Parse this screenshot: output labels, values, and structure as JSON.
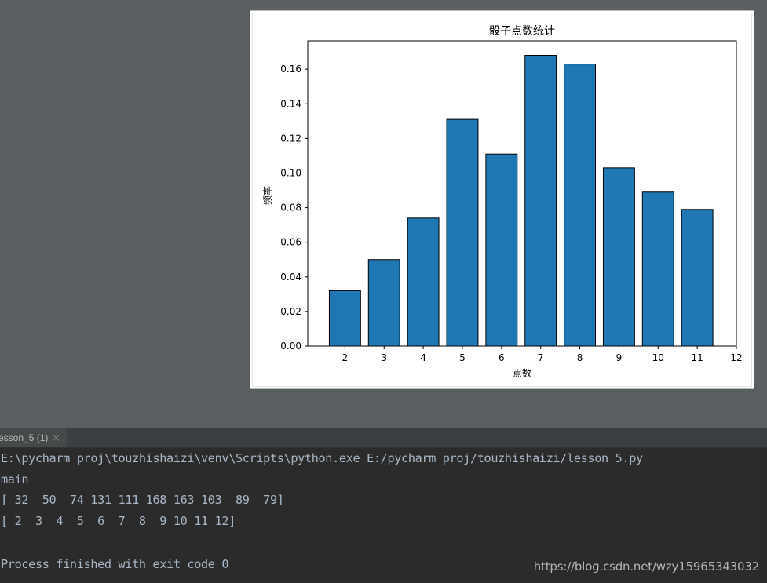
{
  "chart_window": {
    "chart_data": {
      "type": "bar",
      "title": "骰子点数统计",
      "xlabel": "点数",
      "ylabel": "频率",
      "categories": [
        2,
        3,
        4,
        5,
        6,
        7,
        8,
        9,
        10,
        11
      ],
      "values": [
        0.032,
        0.05,
        0.074,
        0.131,
        0.111,
        0.168,
        0.163,
        0.103,
        0.089,
        0.079
      ],
      "xlim": [
        1.05,
        12
      ],
      "ylim": [
        0,
        0.1764
      ],
      "xticks": [
        "2",
        "3",
        "4",
        "5",
        "6",
        "7",
        "8",
        "9",
        "10",
        "11",
        "12"
      ],
      "yticks": [
        "0.00",
        "0.02",
        "0.04",
        "0.06",
        "0.08",
        "0.10",
        "0.12",
        "0.14",
        "0.16"
      ],
      "bar_color": "#1f77b4",
      "edge_color": "#000000",
      "grid": false
    }
  },
  "run_panel": {
    "tab_label": "esson_5 (1)",
    "console_lines": [
      "E:\\pycharm_proj\\touzhishaizi\\venv\\Scripts\\python.exe E:/pycharm_proj/touzhishaizi/lesson_5.py",
      "main",
      "[ 32  50  74 131 111 168 163 103  89  79]",
      "[ 2  3  4  5  6  7  8  9 10 11 12]",
      "",
      "Process finished with exit code 0"
    ]
  },
  "watermark": "https://blog.csdn.net/wzy15965343032",
  "colors": {
    "desktop_bg": "#595e61",
    "console_bg": "#2b2b2b",
    "console_text": "#a9b7c6",
    "tabbar_bg": "#3c3f41"
  }
}
